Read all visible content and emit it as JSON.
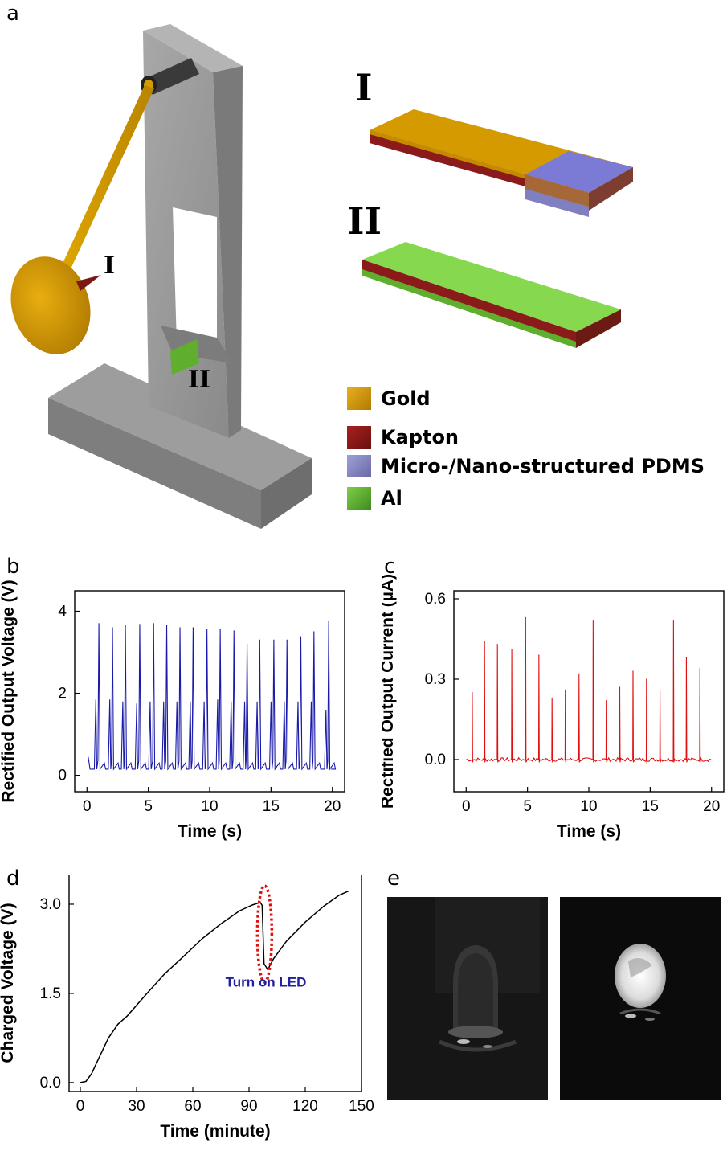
{
  "panel_labels": {
    "a": "a",
    "b": "b",
    "c": "c",
    "d": "d",
    "e": "e"
  },
  "schematic": {
    "callout_I": "I",
    "callout_II": "II",
    "layer_stack_I_label": "I",
    "layer_stack_II_label": "II",
    "legend": [
      {
        "label": "Gold",
        "color": "#d49a00"
      },
      {
        "label": "Kapton",
        "color": "#8b1a1a"
      },
      {
        "label": "Micro-/Nano-structured PDMS",
        "color": "#8080c0"
      },
      {
        "label": "Al",
        "color": "#5fae2e"
      }
    ]
  },
  "chart_data": [
    {
      "id": "b",
      "type": "line",
      "xlabel": "Time (s)",
      "ylabel": "Rectified Output Voltage (V)",
      "xlim": [
        -1,
        21
      ],
      "ylim": [
        -0.4,
        4.5
      ],
      "xticks": [
        0,
        5,
        10,
        15,
        20
      ],
      "yticks": [
        0,
        2,
        4
      ],
      "color": "#1a1aaa",
      "baseline": 0.15,
      "series": [
        {
          "peaks_major": [
            [
              0.97,
              3.7
            ],
            [
              2.08,
              3.6
            ],
            [
              3.13,
              3.65
            ],
            [
              4.3,
              3.68
            ],
            [
              5.43,
              3.7
            ],
            [
              6.5,
              3.65
            ],
            [
              7.58,
              3.6
            ],
            [
              8.65,
              3.6
            ],
            [
              9.78,
              3.55
            ],
            [
              10.86,
              3.55
            ],
            [
              11.98,
              3.52
            ],
            [
              13.05,
              3.2
            ],
            [
              14.08,
              3.3
            ],
            [
              15.23,
              3.3
            ],
            [
              16.3,
              3.3
            ],
            [
              17.43,
              3.38
            ],
            [
              18.5,
              3.5
            ],
            [
              19.7,
              3.75
            ]
          ],
          "peaks_minor": [
            [
              0.72,
              1.85
            ],
            [
              1.86,
              1.85
            ],
            [
              2.92,
              1.8
            ],
            [
              4.05,
              1.75
            ],
            [
              5.15,
              1.8
            ],
            [
              6.25,
              1.8
            ],
            [
              7.33,
              1.8
            ],
            [
              8.42,
              1.8
            ],
            [
              9.55,
              1.8
            ],
            [
              10.65,
              1.85
            ],
            [
              11.75,
              1.8
            ],
            [
              12.85,
              1.8
            ],
            [
              13.87,
              1.8
            ],
            [
              15.0,
              1.8
            ],
            [
              16.08,
              1.8
            ],
            [
              17.2,
              1.8
            ],
            [
              18.28,
              1.8
            ],
            [
              19.48,
              1.6
            ]
          ],
          "start": [
            0.1,
            0.45
          ]
        }
      ]
    },
    {
      "id": "c",
      "type": "line",
      "xlabel": "Time (s)",
      "ylabel": "Rectified Output Current (µA)",
      "xlim": [
        -1,
        21
      ],
      "ylim": [
        -0.12,
        0.63
      ],
      "xticks": [
        0,
        5,
        10,
        15,
        20
      ],
      "yticks": [
        0.0,
        0.3,
        0.6
      ],
      "ytick_labels": [
        "0.0",
        "0.3",
        "0.6"
      ],
      "color": "#e01010",
      "baseline": 0.0,
      "series": [
        {
          "peaks": [
            [
              0.5,
              0.25
            ],
            [
              1.5,
              0.44
            ],
            [
              2.55,
              0.43
            ],
            [
              3.72,
              0.41
            ],
            [
              4.85,
              0.53
            ],
            [
              5.93,
              0.39
            ],
            [
              7.0,
              0.23
            ],
            [
              8.08,
              0.26
            ],
            [
              9.2,
              0.32
            ],
            [
              10.35,
              0.52
            ],
            [
              11.42,
              0.22
            ],
            [
              12.52,
              0.27
            ],
            [
              13.6,
              0.33
            ],
            [
              14.7,
              0.3
            ],
            [
              15.8,
              0.26
            ],
            [
              16.9,
              0.52
            ],
            [
              17.95,
              0.38
            ],
            [
              19.05,
              0.34
            ]
          ]
        }
      ]
    },
    {
      "id": "d",
      "type": "line",
      "xlabel": "Time (minute)",
      "ylabel": "Charged Voltage (V)",
      "xlim": [
        -6,
        150
      ],
      "ylim": [
        -0.15,
        3.5
      ],
      "xticks": [
        0,
        30,
        60,
        90,
        120,
        150
      ],
      "yticks": [
        0.0,
        1.5,
        3.0
      ],
      "ytick_labels": [
        "0.0",
        "1.5",
        "3.0"
      ],
      "color": "#000000",
      "series": [
        {
          "points": [
            [
              0,
              0
            ],
            [
              3,
              0.02
            ],
            [
              6,
              0.15
            ],
            [
              10,
              0.42
            ],
            [
              15,
              0.75
            ],
            [
              20,
              0.98
            ],
            [
              25,
              1.12
            ],
            [
              35,
              1.48
            ],
            [
              45,
              1.83
            ],
            [
              55,
              2.12
            ],
            [
              65,
              2.42
            ],
            [
              75,
              2.67
            ],
            [
              85,
              2.89
            ],
            [
              92,
              2.99
            ],
            [
              96,
              3.03
            ],
            [
              97,
              2.98
            ],
            [
              98,
              2.0
            ],
            [
              99,
              1.95
            ],
            [
              100,
              1.9
            ],
            [
              103,
              2.08
            ],
            [
              110,
              2.38
            ],
            [
              120,
              2.7
            ],
            [
              130,
              2.97
            ],
            [
              138,
              3.15
            ],
            [
              143,
              3.22
            ]
          ]
        }
      ],
      "annotation": {
        "text": "Turn on LED",
        "x": 99,
        "y": 2.4,
        "color": "#2020a0",
        "ellipse_color": "#e01010"
      }
    }
  ]
}
